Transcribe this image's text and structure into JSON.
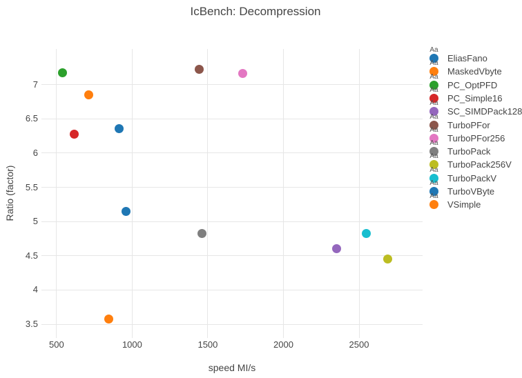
{
  "chart_data": {
    "type": "scatter",
    "title": "IcBench: Decompression",
    "xlabel": "speed MI/s",
    "ylabel": "Ratio (factor)",
    "x_ticks": [
      500,
      1000,
      1500,
      2000,
      2500
    ],
    "y_ticks": [
      3.5,
      4,
      4.5,
      5,
      5.5,
      6,
      6.5,
      7
    ],
    "xlim": [
      400,
      2920
    ],
    "ylim": [
      3.3,
      7.52
    ],
    "grid": true,
    "legend_position": "right",
    "legend_sample_text": "Aa",
    "series": [
      {
        "name": "EliasFano",
        "color": "#1f77b4",
        "x": 915,
        "y": 6.36
      },
      {
        "name": "MaskedVbyte",
        "color": "#ff7f0e",
        "x": 713,
        "y": 6.85
      },
      {
        "name": "PC_OptPFD",
        "color": "#2ca02c",
        "x": 541,
        "y": 7.17
      },
      {
        "name": "PC_Simple16",
        "color": "#d62728",
        "x": 616,
        "y": 6.28
      },
      {
        "name": "SC_SIMDPack128",
        "color": "#9467bd",
        "x": 2352,
        "y": 4.6
      },
      {
        "name": "TurboPFor",
        "color": "#8c564b",
        "x": 1443,
        "y": 7.22
      },
      {
        "name": "TurboPFor256",
        "color": "#e377c2",
        "x": 1731,
        "y": 7.16
      },
      {
        "name": "TurboPack",
        "color": "#7f7f7f",
        "x": 1461,
        "y": 4.83
      },
      {
        "name": "TurboPack256V",
        "color": "#bcbd22",
        "x": 2691,
        "y": 4.45
      },
      {
        "name": "TurboPackV",
        "color": "#17becf",
        "x": 2548,
        "y": 4.83
      },
      {
        "name": "TurboVByte",
        "color": "#1f77b4",
        "x": 959,
        "y": 5.15
      },
      {
        "name": "VSimple",
        "color": "#ff7f0e",
        "x": 846,
        "y": 3.58
      }
    ]
  }
}
